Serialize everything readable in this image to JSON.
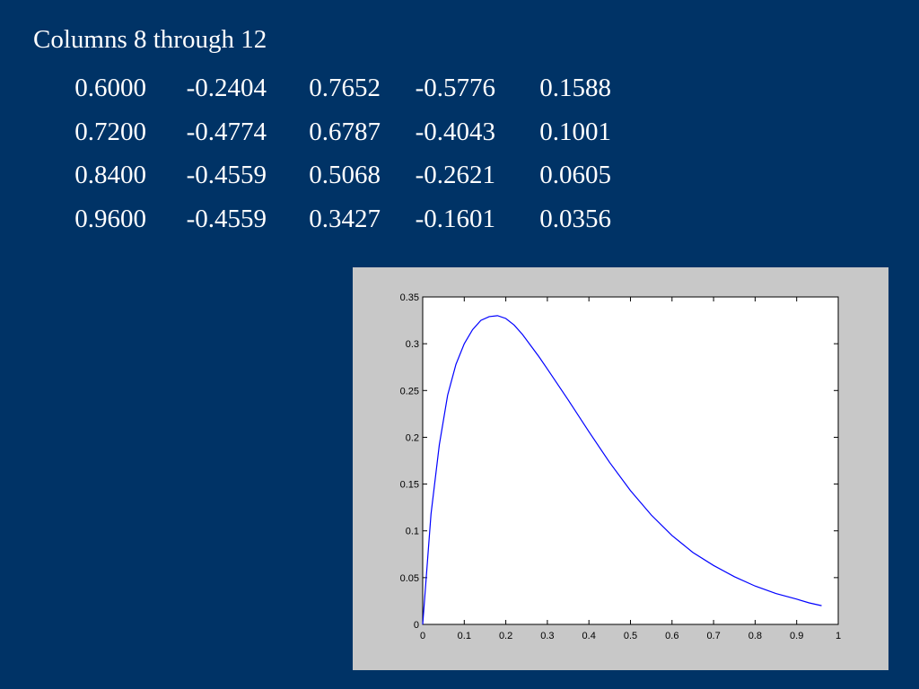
{
  "slide": {
    "title": "Columns 8 through 12"
  },
  "matrix": {
    "rows": [
      [
        "0.6000",
        "-0.2404",
        "0.7652",
        "-0.5776",
        "0.1588"
      ],
      [
        "0.7200",
        "-0.4774",
        "0.6787",
        "-0.4043",
        "0.1001"
      ],
      [
        "0.8400",
        "-0.4559",
        "0.5068",
        "-0.2621",
        "0.0605"
      ],
      [
        "0.9600",
        "-0.4559",
        "0.3427",
        "-0.1601",
        "0.0356"
      ]
    ]
  },
  "chart_data": {
    "type": "line",
    "title": "",
    "xlabel": "",
    "ylabel": "",
    "xlim": [
      0,
      1
    ],
    "ylim": [
      0,
      0.35
    ],
    "xticks": [
      "0",
      "0.1",
      "0.2",
      "0.3",
      "0.4",
      "0.5",
      "0.6",
      "0.7",
      "0.8",
      "0.9",
      "1"
    ],
    "yticks": [
      "0",
      "0.05",
      "0.1",
      "0.15",
      "0.2",
      "0.25",
      "0.3",
      "0.35"
    ],
    "grid": false,
    "line_color": "#0000ff",
    "figure_background": "#c8c8c8",
    "series": [
      {
        "x": [
          0,
          0.02,
          0.04,
          0.06,
          0.08,
          0.1,
          0.12,
          0.14,
          0.16,
          0.18,
          0.2,
          0.22,
          0.24,
          0.26,
          0.28,
          0.3,
          0.35,
          0.4,
          0.45,
          0.5,
          0.55,
          0.6,
          0.65,
          0.7,
          0.75,
          0.8,
          0.85,
          0.9,
          0.93,
          0.96
        ],
        "y": [
          0,
          0.118,
          0.192,
          0.245,
          0.278,
          0.3,
          0.315,
          0.325,
          0.329,
          0.33,
          0.327,
          0.32,
          0.31,
          0.298,
          0.286,
          0.273,
          0.24,
          0.206,
          0.173,
          0.143,
          0.117,
          0.095,
          0.077,
          0.063,
          0.051,
          0.041,
          0.033,
          0.027,
          0.023,
          0.02
        ]
      }
    ]
  }
}
